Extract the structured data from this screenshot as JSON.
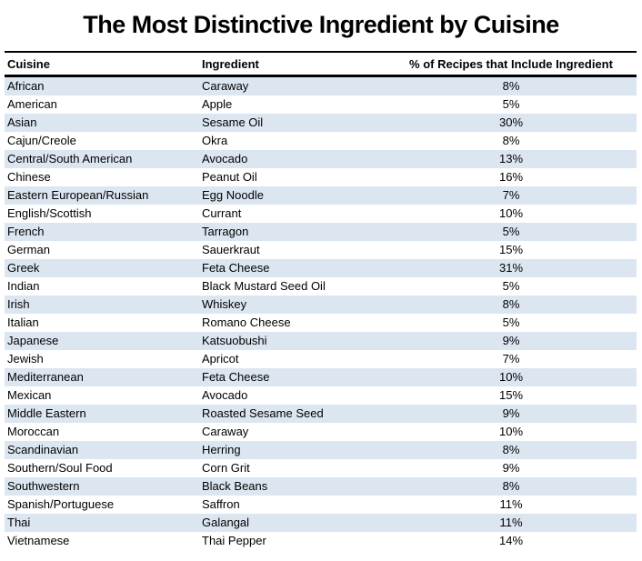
{
  "title": "The Most Distinctive Ingredient by Cuisine",
  "chart_data": {
    "type": "table",
    "title": "The Most Distinctive Ingredient by Cuisine",
    "columns": [
      "Cuisine",
      "Ingredient",
      "% of Recipes that Include Ingredient"
    ],
    "rows": [
      [
        "African",
        "Caraway",
        "8%"
      ],
      [
        "American",
        "Apple",
        "5%"
      ],
      [
        "Asian",
        "Sesame Oil",
        "30%"
      ],
      [
        "Cajun/Creole",
        "Okra",
        "8%"
      ],
      [
        "Central/South American",
        "Avocado",
        "13%"
      ],
      [
        "Chinese",
        "Peanut Oil",
        "16%"
      ],
      [
        "Eastern European/Russian",
        "Egg Noodle",
        "7%"
      ],
      [
        "English/Scottish",
        "Currant",
        "10%"
      ],
      [
        "French",
        "Tarragon",
        "5%"
      ],
      [
        "German",
        "Sauerkraut",
        "15%"
      ],
      [
        "Greek",
        "Feta Cheese",
        "31%"
      ],
      [
        "Indian",
        "Black Mustard Seed Oil",
        "5%"
      ],
      [
        "Irish",
        "Whiskey",
        "8%"
      ],
      [
        "Italian",
        "Romano Cheese",
        "5%"
      ],
      [
        "Japanese",
        "Katsuobushi",
        "9%"
      ],
      [
        "Jewish",
        "Apricot",
        "7%"
      ],
      [
        "Mediterranean",
        "Feta Cheese",
        "10%"
      ],
      [
        "Mexican",
        "Avocado",
        "15%"
      ],
      [
        "Middle Eastern",
        "Roasted Sesame Seed",
        "9%"
      ],
      [
        "Moroccan",
        "Caraway",
        "10%"
      ],
      [
        "Scandinavian",
        "Herring",
        "8%"
      ],
      [
        "Southern/Soul Food",
        "Corn Grit",
        "9%"
      ],
      [
        "Southwestern",
        "Black Beans",
        "8%"
      ],
      [
        "Spanish/Portuguese",
        "Saffron",
        "11%"
      ],
      [
        "Thai",
        "Galangal",
        "11%"
      ],
      [
        "Vietnamese",
        "Thai Pepper",
        "14%"
      ]
    ],
    "layout": {
      "striped": true,
      "first_body_row_striped": true,
      "grid": false,
      "header_top_border": true,
      "header_bottom_border": true,
      "percent_column_alignment": "center"
    }
  },
  "colors": {
    "stripe": "#dce6f1",
    "border": "#000000",
    "text": "#000000",
    "background": "#ffffff"
  }
}
